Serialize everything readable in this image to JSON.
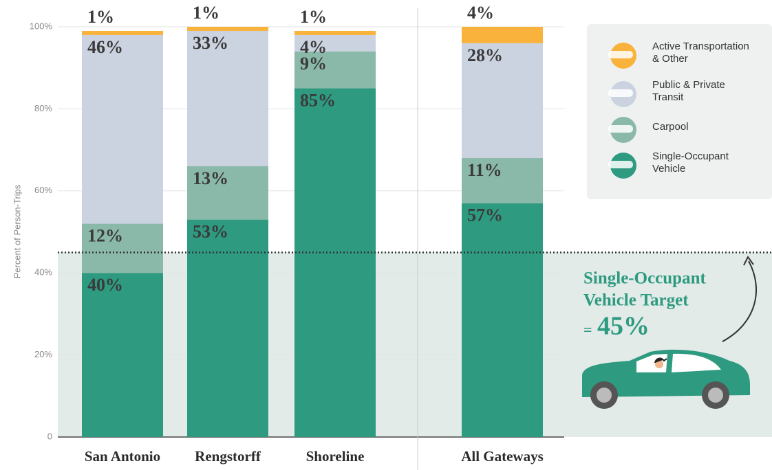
{
  "chart_data": {
    "type": "stacked-bar",
    "y_label": "Percent of Person-Trips",
    "categories": [
      "San Antonio",
      "Rengstorff",
      "Shoreline",
      "All Gateways"
    ],
    "series": [
      {
        "name": "Single-Occupant Vehicle",
        "color": "#2e9a80",
        "values": [
          40,
          53,
          85,
          57
        ],
        "value_labels": [
          "40%",
          "53%",
          "85%",
          "57%"
        ]
      },
      {
        "name": "Carpool",
        "color": "#8ab8a9",
        "values": [
          12,
          13,
          9,
          11
        ],
        "value_labels": [
          "12%",
          "13%",
          "9%",
          "11%"
        ]
      },
      {
        "name": "Public & Private Transit",
        "color": "#ccd3e0",
        "values": [
          46,
          33,
          4,
          28
        ],
        "value_labels": [
          "46%",
          "33%",
          "4%",
          "28%"
        ]
      },
      {
        "name": "Active Transportation & Other",
        "color": "#f9b23b",
        "values": [
          1,
          1,
          1,
          4
        ],
        "value_labels": [
          "1%",
          "1%",
          "1%",
          "4%"
        ]
      }
    ],
    "ylim": [
      0,
      100
    ],
    "yticks": [
      0,
      {
        "value": 20,
        "label": "20%"
      },
      {
        "value": 40,
        "label": "40%"
      },
      {
        "value": 60,
        "label": "60%"
      },
      {
        "value": 80,
        "label": "80%"
      },
      {
        "value": 100,
        "label": "100%"
      }
    ],
    "grid": true,
    "target": {
      "label_lines": [
        "Single-Occupant",
        "Vehicle Target"
      ],
      "prefix": "=",
      "value": 45,
      "value_label": "45%"
    }
  }
}
